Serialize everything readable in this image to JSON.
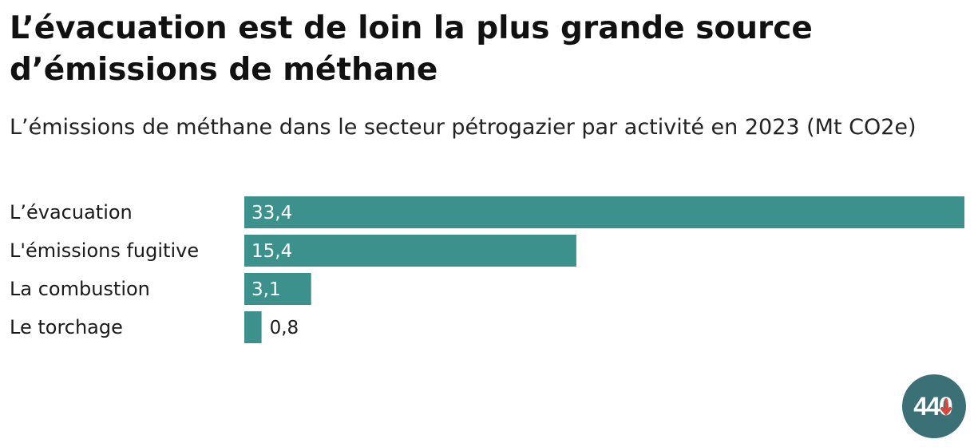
{
  "header": {
    "title": "L’évacuation est de loin la plus grande source d’émissions de méthane",
    "subtitle": "L’émissions de méthane dans le secteur pétrogazier par activité en 2023 (Mt CO2e)"
  },
  "colors": {
    "bar": "#3c918c",
    "label_inside": "#ffffff",
    "label_outside": "#1a1a1a",
    "logo_bg": "#3a7076",
    "logo_arrow": "#d6473b"
  },
  "logo": {
    "text": "440",
    "icon": "down-arrow-icon"
  },
  "chart_data": {
    "type": "bar",
    "orientation": "horizontal",
    "title": "L’évacuation est de loin la plus grande source d’émissions de méthane",
    "subtitle": "L’émissions de méthane dans le secteur pétrogazier par activité en 2023 (Mt CO2e)",
    "categories": [
      "L’évacuation",
      "L'émissions fugitive",
      "La combustion",
      "Le torchage"
    ],
    "values": [
      33.4,
      15.4,
      3.1,
      0.8
    ],
    "value_labels": [
      "33,4",
      "15,4",
      "3,1",
      "0,8"
    ],
    "xlim": [
      0,
      33.4
    ],
    "grid": false,
    "legend": "none"
  }
}
